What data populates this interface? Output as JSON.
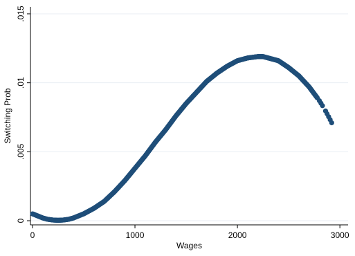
{
  "chart_data": {
    "type": "scatter",
    "title": "",
    "xlabel": "Wages",
    "ylabel": "Switching Prob",
    "xlim": [
      -20,
      3080
    ],
    "ylim": [
      -0.0003,
      0.0155
    ],
    "xticks": [
      0,
      1000,
      2000,
      3000
    ],
    "xtick_labels": [
      "0",
      "1000",
      "2000",
      "3000"
    ],
    "yticks": [
      0,
      0.005,
      0.01,
      0.015
    ],
    "ytick_labels": [
      "0",
      ".005",
      ".01",
      ".015"
    ],
    "grid": true,
    "legend": "none",
    "colors": {
      "marker": "#1f4e79",
      "grid": "#e8eef3",
      "axis": "#000000"
    },
    "series": [
      {
        "x": [
          0,
          50,
          100,
          150,
          200,
          250,
          300,
          350,
          400,
          450,
          500,
          600,
          700,
          800,
          900,
          1000,
          1100,
          1200,
          1300,
          1400,
          1500,
          1600,
          1700,
          1800,
          1900,
          2000,
          2100,
          2200,
          2250,
          2300,
          2400,
          2500,
          2600,
          2700,
          2750,
          2800,
          2850,
          2900,
          2920
        ],
        "y": [
          0.0005,
          0.00035,
          0.0002,
          0.0001,
          5e-05,
          3e-05,
          5e-05,
          0.0001,
          0.0002,
          0.00035,
          0.0005,
          0.0009,
          0.0014,
          0.0021,
          0.0029,
          0.0038,
          0.0047,
          0.0057,
          0.0066,
          0.0076,
          0.0085,
          0.0093,
          0.0101,
          0.0107,
          0.0112,
          0.0116,
          0.0118,
          0.0119,
          0.0119,
          0.0118,
          0.0116,
          0.0111,
          0.0105,
          0.0097,
          0.0092,
          0.0087,
          0.0081,
          0.0074,
          0.0071
        ]
      }
    ]
  }
}
